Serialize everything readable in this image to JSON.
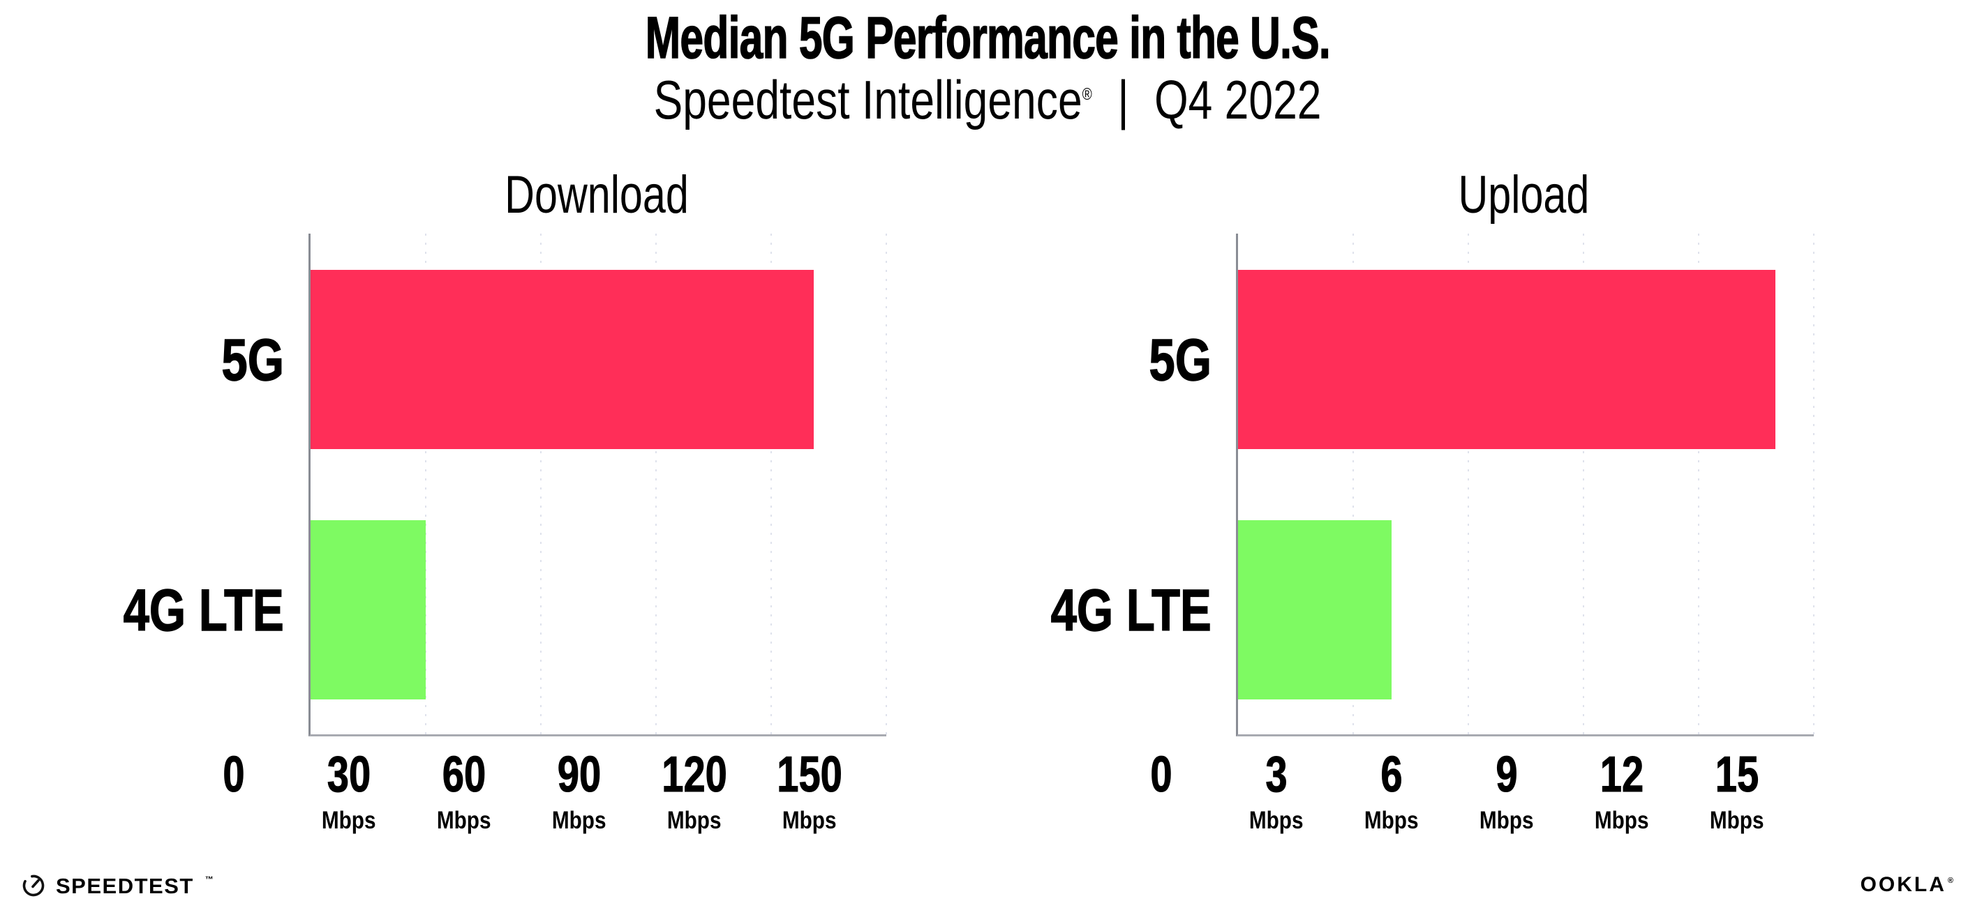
{
  "header": {
    "title": "Median 5G Performance in the U.S.",
    "subtitle": {
      "brand": "Speedtest Intelligence",
      "reg": "®",
      "sep": "|",
      "period": "Q4 2022"
    }
  },
  "colors": {
    "bar_5g_pink": "#FF2E58",
    "bar_4g_green": "#7EFA62",
    "axis_vertical": "#8A8D95",
    "axis_horizontal": "#A8AAB1",
    "gridline": "#DFE2EC",
    "text": "#000000"
  },
  "chart_data": [
    {
      "type": "bar",
      "orientation": "horizontal",
      "title": "Download",
      "categories": [
        "5G",
        "4G LTE"
      ],
      "values": [
        131,
        30
      ],
      "unit": "Mbps",
      "xlim": [
        0,
        150
      ],
      "ticks": [
        0,
        30,
        60,
        90,
        120,
        150
      ],
      "tick_unit": "Mbps",
      "bar_colors": [
        "#FF2E58",
        "#7EFA62"
      ],
      "grid": "dotted-vertical",
      "legend": "none"
    },
    {
      "type": "bar",
      "orientation": "horizontal",
      "title": "Upload",
      "categories": [
        "5G",
        "4G LTE"
      ],
      "values": [
        14,
        4
      ],
      "unit": "Mbps",
      "xlim": [
        0,
        15
      ],
      "ticks": [
        0,
        3,
        6,
        9,
        12,
        15
      ],
      "tick_unit": "Mbps",
      "bar_colors": [
        "#FF2E58",
        "#7EFA62"
      ],
      "grid": "dotted-vertical",
      "legend": "none"
    }
  ],
  "footer": {
    "speedtest_label": "SPEEDTEST",
    "speedtest_tm": "™",
    "ookla_label": "OOKLA",
    "ookla_reg": "®"
  }
}
